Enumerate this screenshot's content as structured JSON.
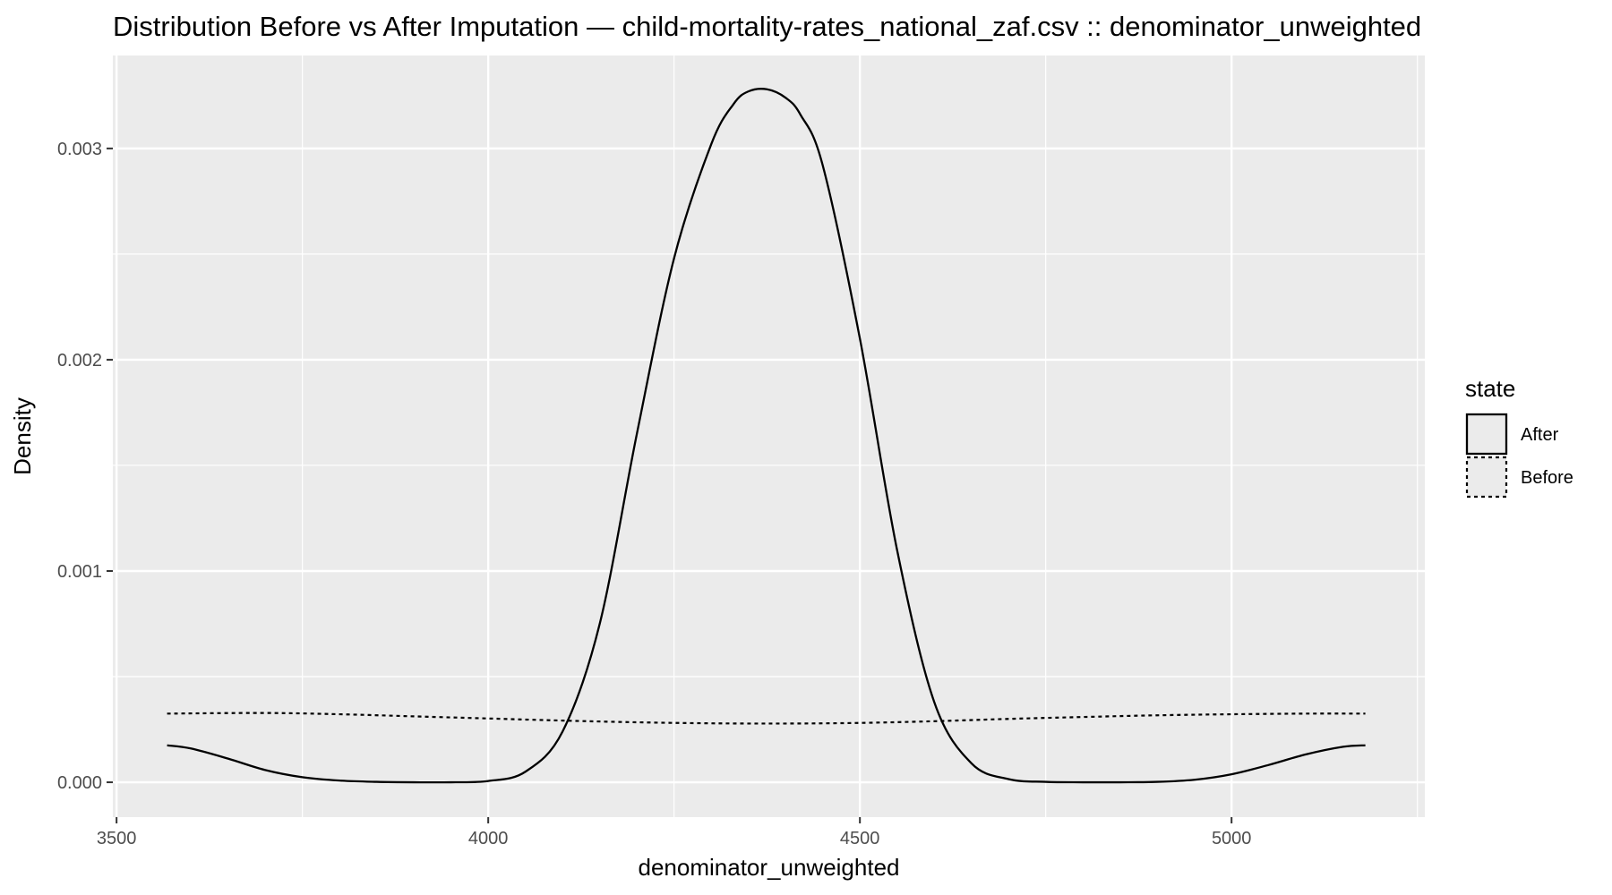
{
  "chart_data": {
    "type": "line",
    "title": "Distribution Before vs After Imputation — child-mortality-rates_national_zaf.csv :: denominator_unweighted",
    "xlabel": "denominator_unweighted",
    "ylabel": "Density",
    "xlim": [
      3495,
      5260
    ],
    "ylim": [
      -0.000165,
      0.00344
    ],
    "x_ticks": [
      3500,
      4000,
      4500,
      5000
    ],
    "x_tick_labels": [
      "3500",
      "4000",
      "4500",
      "5000"
    ],
    "y_ticks": [
      0.0,
      0.001,
      0.002,
      0.003
    ],
    "y_tick_labels": [
      "0.000",
      "0.001",
      "0.002",
      "0.003"
    ],
    "grid": true,
    "legend": {
      "title": "state",
      "position": "right",
      "entries": [
        {
          "label": "After",
          "linetype": "solid"
        },
        {
          "label": "Before",
          "linetype": "dotted"
        }
      ]
    },
    "series": [
      {
        "name": "After",
        "linetype": "solid",
        "color": "#000000",
        "x": [
          3568,
          3600,
          3650,
          3700,
          3750,
          3800,
          3850,
          3900,
          3950,
          4000,
          4050,
          4100,
          4150,
          4200,
          4250,
          4300,
          4330,
          4350,
          4375,
          4400,
          4420,
          4450,
          4500,
          4550,
          4600,
          4650,
          4700,
          4750,
          4800,
          4850,
          4900,
          4950,
          5000,
          5050,
          5100,
          5150,
          5180
        ],
        "y": [
          0.000175,
          0.00016,
          0.000112,
          5.8e-05,
          2.4e-05,
          8e-06,
          2e-06,
          0.0,
          0.0,
          6e-06,
          5e-05,
          0.00024,
          0.00075,
          0.00165,
          0.00248,
          0.00302,
          0.00321,
          0.00327,
          0.00328,
          0.00324,
          0.00316,
          0.00292,
          0.0021,
          0.0011,
          0.00038,
          9e-05,
          1.5e-05,
          2e-06,
          0.0,
          0.0,
          2e-06,
          1.2e-05,
          3.8e-05,
          8.2e-05,
          0.000132,
          0.000168,
          0.000175
        ]
      },
      {
        "name": "Before",
        "linetype": "dotted",
        "color": "#000000",
        "x": [
          3568,
          3700,
          3800,
          3900,
          4000,
          4100,
          4200,
          4300,
          4400,
          4500,
          4600,
          4700,
          4800,
          4900,
          5000,
          5100,
          5180
        ],
        "y": [
          0.000325,
          0.000328,
          0.000322,
          0.000312,
          0.000302,
          0.000292,
          0.000284,
          0.000279,
          0.000278,
          0.000281,
          0.000289,
          0.0003,
          0.000309,
          0.000317,
          0.000322,
          0.000325,
          0.000325
        ]
      }
    ]
  }
}
